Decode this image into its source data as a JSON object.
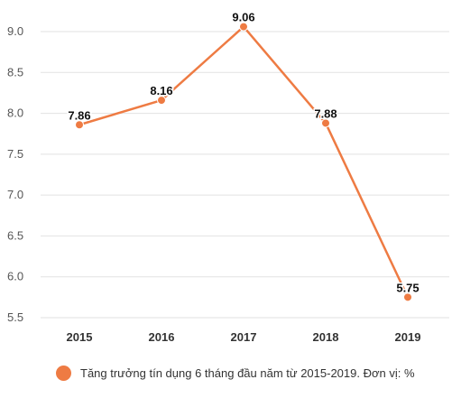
{
  "chart_data": {
    "type": "line",
    "categories": [
      "2015",
      "2016",
      "2017",
      "2018",
      "2019"
    ],
    "series": [
      {
        "name": "Tăng trưởng tín dụng 6 tháng đầu năm từ 2015-2019. Đơn vị: %",
        "values": [
          7.86,
          8.16,
          9.06,
          7.88,
          5.75
        ],
        "data_labels": [
          "7.86",
          "8.16",
          "9.06",
          "7.88",
          "5.75"
        ]
      }
    ],
    "yticks": [
      "5.5",
      "6.0",
      "6.5",
      "7.0",
      "7.5",
      "8.0",
      "8.5",
      "9.0"
    ],
    "ylim": [
      5.5,
      9.0
    ],
    "grid": true,
    "legend_position": "bottom",
    "colors": {
      "series": "#ee7b43",
      "grid": "#e2e2e2"
    }
  }
}
